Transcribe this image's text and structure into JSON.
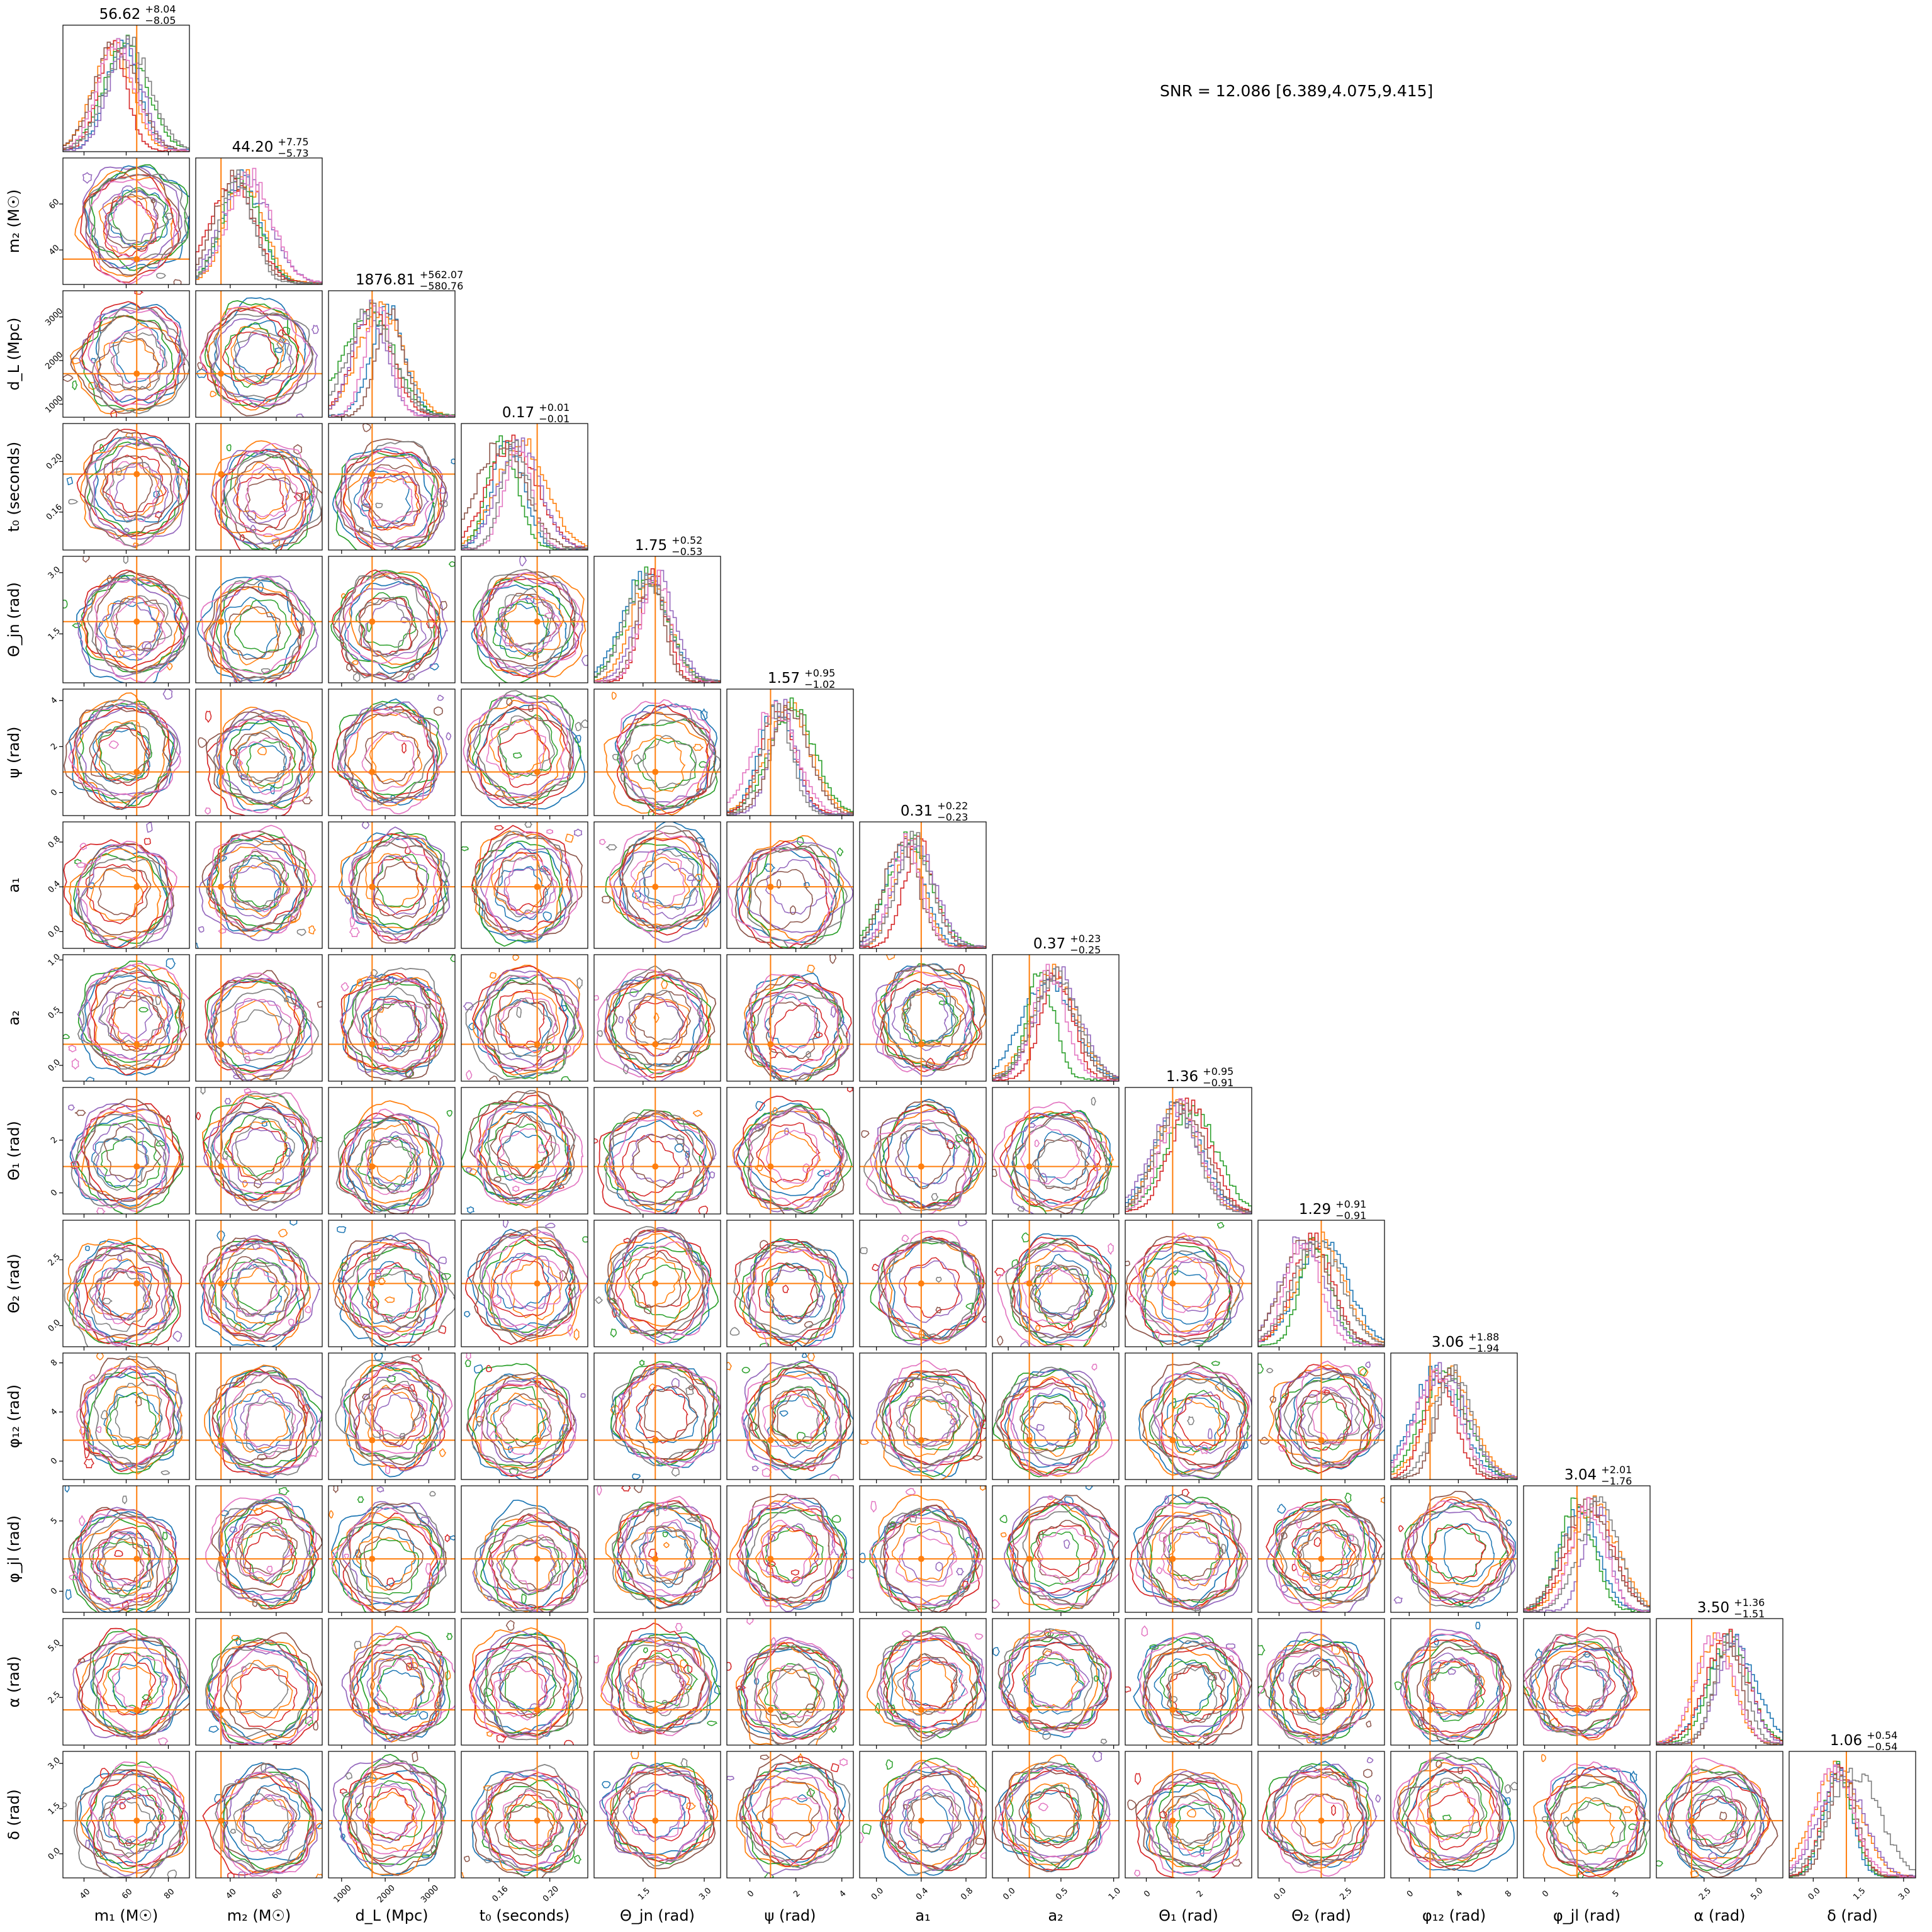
{
  "snr_text": "SNR = 12.086 [6.389,4.075,9.415]",
  "colors": {
    "injection": "#ff7f0e",
    "series": [
      "#1f77b4",
      "#ff7f0e",
      "#2ca02c",
      "#d62728",
      "#9467bd",
      "#8c564b",
      "#e377c2",
      "#7f7f7f"
    ]
  },
  "chart_data": {
    "type": "corner",
    "parameters": [
      {
        "label": "m₁ (M☉)",
        "short": "m1",
        "range": [
          30,
          90
        ],
        "ticks": [
          40,
          60,
          80
        ],
        "tick_labels": [
          "40",
          "60",
          "80"
        ],
        "injection": 65,
        "median": "56.62",
        "plus": "+8.04",
        "minus": "−8.05"
      },
      {
        "label": "m₂ (M☉)",
        "short": "m2",
        "range": [
          25,
          80
        ],
        "ticks": [
          40,
          60
        ],
        "tick_labels": [
          "40",
          "60"
        ],
        "injection": 36,
        "median": "44.20",
        "plus": "+7.75",
        "minus": "−5.73"
      },
      {
        "label": "d_L (Mpc)",
        "short": "dL",
        "range": [
          700,
          3600
        ],
        "ticks": [
          1000,
          2000,
          3000
        ],
        "tick_labels": [
          "1000",
          "2000",
          "3000"
        ],
        "injection": 1700,
        "median": "1876.81",
        "plus": "+562.07",
        "minus": "−580.76"
      },
      {
        "label": "t₀ (seconds)",
        "short": "t0",
        "range": [
          0.13,
          0.23
        ],
        "ticks": [
          0.16,
          0.2
        ],
        "tick_labels": [
          "0.16",
          "0.20"
        ],
        "injection": 0.19,
        "median": "0.17",
        "plus": "+0.01",
        "minus": "−0.01"
      },
      {
        "label": "Θ_jn (rad)",
        "short": "thetajn",
        "range": [
          0.3,
          3.4
        ],
        "ticks": [
          1.5,
          3.0
        ],
        "tick_labels": [
          "1.5",
          "3.0"
        ],
        "injection": 1.8,
        "median": "1.75",
        "plus": "+0.52",
        "minus": "−0.53"
      },
      {
        "label": "ψ (rad)",
        "short": "psi",
        "range": [
          -1,
          4.5
        ],
        "ticks": [
          0,
          2,
          4
        ],
        "tick_labels": [
          "0",
          "2",
          "4"
        ],
        "injection": 0.9,
        "median": "1.57",
        "plus": "+0.95",
        "minus": "−1.02"
      },
      {
        "label": "a₁",
        "short": "a1",
        "range": [
          -0.15,
          0.98
        ],
        "ticks": [
          0.0,
          0.4,
          0.8
        ],
        "tick_labels": [
          "0.0",
          "0.4",
          "0.8"
        ],
        "injection": 0.4,
        "median": "0.31",
        "plus": "+0.22",
        "minus": "−0.23"
      },
      {
        "label": "a₂",
        "short": "a2",
        "range": [
          -0.15,
          1.05
        ],
        "ticks": [
          0.0,
          0.5,
          1.0
        ],
        "tick_labels": [
          "0.0",
          "0.5",
          "1.0"
        ],
        "injection": 0.2,
        "median": "0.37",
        "plus": "+0.23",
        "minus": "−0.25"
      },
      {
        "label": "Θ₁ (rad)",
        "short": "theta1",
        "range": [
          -0.8,
          4.0
        ],
        "ticks": [
          0,
          2
        ],
        "tick_labels": [
          "0",
          "2"
        ],
        "injection": 1.0,
        "median": "1.36",
        "plus": "+0.95",
        "minus": "−0.91"
      },
      {
        "label": "Θ₂ (rad)",
        "short": "theta2",
        "range": [
          -0.8,
          4.0
        ],
        "ticks": [
          0.0,
          2.5
        ],
        "tick_labels": [
          "0.0",
          "2.5"
        ],
        "injection": 1.6,
        "median": "1.29",
        "plus": "+0.91",
        "minus": "−0.91"
      },
      {
        "label": "φ₁₂ (rad)",
        "short": "phi12",
        "range": [
          -1.5,
          8.8
        ],
        "ticks": [
          0,
          4,
          8
        ],
        "tick_labels": [
          "0",
          "4",
          "8"
        ],
        "injection": 1.7,
        "median": "3.06",
        "plus": "+1.88",
        "minus": "−1.94"
      },
      {
        "label": "φ_jl (rad)",
        "short": "phijl",
        "range": [
          -1.5,
          7.5
        ],
        "ticks": [
          0,
          5
        ],
        "tick_labels": [
          "0",
          "5"
        ],
        "injection": 2.3,
        "median": "3.04",
        "plus": "+2.01",
        "minus": "−1.76"
      },
      {
        "label": "α (rad)",
        "short": "alpha",
        "range": [
          0.2,
          6.3
        ],
        "ticks": [
          2.5,
          5.0
        ],
        "tick_labels": [
          "2.5",
          "5.0"
        ],
        "injection": 1.9,
        "median": "3.50",
        "plus": "+1.36",
        "minus": "−1.51"
      },
      {
        "label": "δ (rad)",
        "short": "delta",
        "range": [
          -0.8,
          3.4
        ],
        "ticks": [
          0.0,
          1.5,
          3.0
        ],
        "tick_labels": [
          "0.0",
          "1.5",
          "3.0"
        ],
        "injection": 1.1,
        "median": "1.06",
        "plus": "+0.54",
        "minus": "−0.54"
      }
    ]
  }
}
